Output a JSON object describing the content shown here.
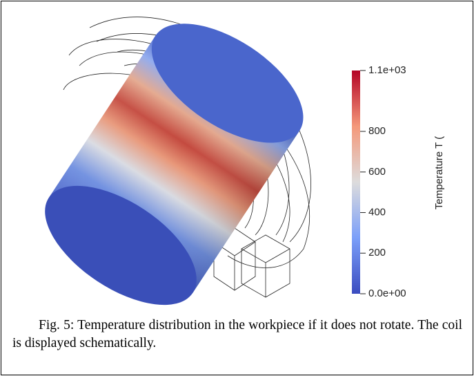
{
  "figure": {
    "colorbar": {
      "title": "Temperature T (",
      "lim": [
        0,
        1100
      ],
      "ticks": [
        {
          "value": 0,
          "label": "0.0e+00"
        },
        200,
        400,
        600,
        800,
        {
          "value": 1100,
          "label": "1.1e+03"
        }
      ]
    },
    "caption": "Fig. 5: Temperature distribution in the workpiece if it does not rotate. The coil is displayed schematically."
  }
}
